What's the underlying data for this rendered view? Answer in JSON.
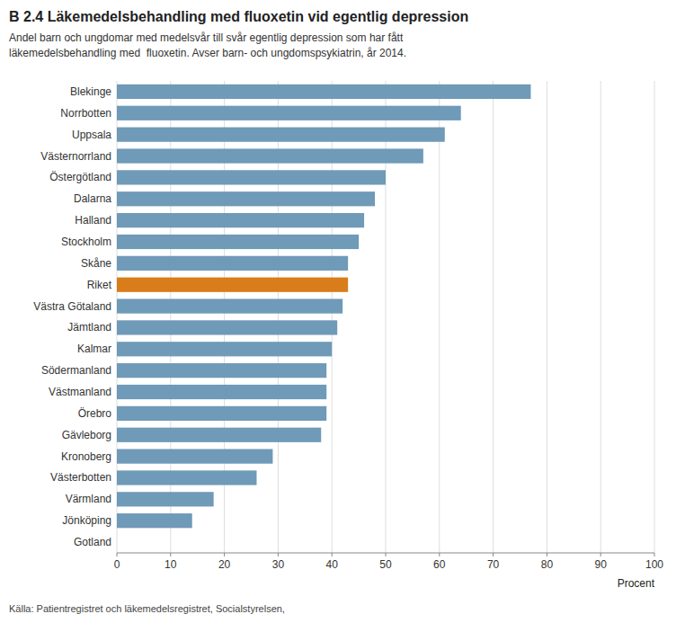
{
  "chart_data": {
    "type": "bar",
    "orientation": "horizontal",
    "title": "B 2.4 Läkemedelsbehandling med fluoxetin vid egentlig depression",
    "subtitle": "Andel barn och ungdomar med medelsvår till svår egentlig depression som har fått\nläkemedelsbehandling med  fluoxetin. Avser barn- och ungdomspsykiatrin, år 2014.",
    "source": "Källa: Patientregistret och läkemedelsregistret, Socialstyrelsen,",
    "xlabel": "Procent",
    "categories": [
      "Blekinge",
      "Norrbotten",
      "Uppsala",
      "Västernorrland",
      "Östergötland",
      "Dalarna",
      "Halland",
      "Stockholm",
      "Skåne",
      "Riket",
      "Västra Götaland",
      "Jämtland",
      "Kalmar",
      "Södermanland",
      "Västmanland",
      "Örebro",
      "Gävleborg",
      "Kronoberg",
      "Västerbotten",
      "Värmland",
      "Jönköping",
      "Gotland"
    ],
    "values": [
      77,
      64,
      61,
      57,
      50,
      48,
      46,
      45,
      43,
      43,
      42,
      41,
      40,
      39,
      39,
      39,
      38,
      29,
      26,
      18,
      14,
      0
    ],
    "colors": [
      "#6f9ab8",
      "#6f9ab8",
      "#6f9ab8",
      "#6f9ab8",
      "#6f9ab8",
      "#6f9ab8",
      "#6f9ab8",
      "#6f9ab8",
      "#6f9ab8",
      "#d97c1a",
      "#6f9ab8",
      "#6f9ab8",
      "#6f9ab8",
      "#6f9ab8",
      "#6f9ab8",
      "#6f9ab8",
      "#6f9ab8",
      "#6f9ab8",
      "#6f9ab8",
      "#6f9ab8",
      "#6f9ab8",
      "#6f9ab8"
    ],
    "xlim": [
      0,
      100
    ],
    "xticks": [
      0,
      10,
      20,
      30,
      40,
      50,
      60,
      70,
      80,
      90,
      100
    ],
    "grid": true
  }
}
